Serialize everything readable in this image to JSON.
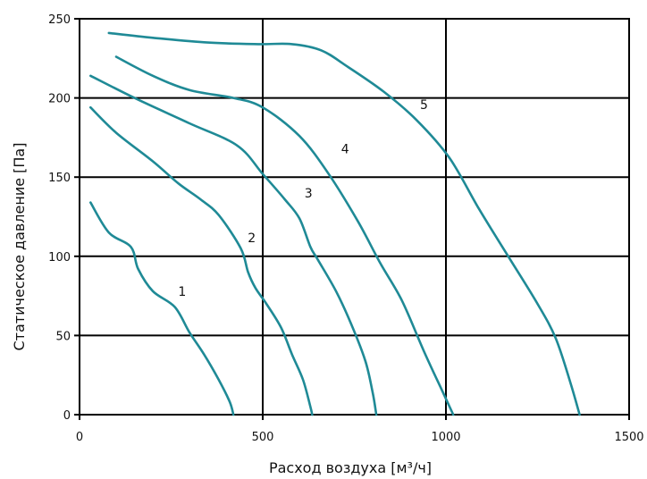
{
  "chart_data": {
    "type": "line",
    "title": "",
    "xlabel": "Расход воздуха [м³/ч]",
    "ylabel": "Статическое давление [Па]",
    "xlim": [
      0,
      1500
    ],
    "ylim": [
      0,
      250
    ],
    "xticks": [
      0,
      500,
      1000,
      1500
    ],
    "yticks": [
      0,
      50,
      100,
      150,
      200,
      250
    ],
    "grid": true,
    "legend": "none",
    "color": "#1f8a96",
    "series": [
      {
        "label": "1",
        "label_at": [
          280,
          75
        ],
        "x": [
          30,
          80,
          140,
          160,
          200,
          260,
          300,
          340,
          380,
          410,
          420
        ],
        "y": [
          134,
          115,
          106,
          92,
          78,
          68,
          52,
          38,
          22,
          8,
          0
        ]
      },
      {
        "label": "2",
        "label_at": [
          470,
          109
        ],
        "x": [
          30,
          100,
          200,
          270,
          330,
          380,
          440,
          460,
          480,
          510,
          550,
          580,
          610,
          630,
          635
        ],
        "y": [
          194,
          178,
          160,
          146,
          136,
          126,
          105,
          90,
          80,
          70,
          55,
          38,
          22,
          5,
          0
        ]
      },
      {
        "label": "3",
        "label_at": [
          625,
          137
        ],
        "x": [
          30,
          150,
          300,
          430,
          500,
          560,
          600,
          630,
          650,
          700,
          740,
          780,
          800,
          810
        ],
        "y": [
          214,
          200,
          184,
          170,
          152,
          136,
          124,
          106,
          98,
          78,
          58,
          34,
          14,
          0
        ]
      },
      {
        "label": "4",
        "label_at": [
          725,
          165
        ],
        "x": [
          100,
          200,
          300,
          420,
          500,
          600,
          680,
          760,
          820,
          880,
          940,
          990,
          1020
        ],
        "y": [
          226,
          214,
          205,
          200,
          194,
          176,
          152,
          122,
          96,
          72,
          40,
          15,
          0
        ]
      },
      {
        "label": "5",
        "label_at": [
          940,
          193
        ],
        "x": [
          80,
          200,
          350,
          490,
          580,
          660,
          730,
          830,
          920,
          1010,
          1090,
          1170,
          1250,
          1300,
          1340,
          1365
        ],
        "y": [
          241,
          238,
          235,
          234,
          234,
          230,
          220,
          204,
          186,
          162,
          130,
          100,
          70,
          48,
          20,
          0
        ]
      }
    ]
  }
}
